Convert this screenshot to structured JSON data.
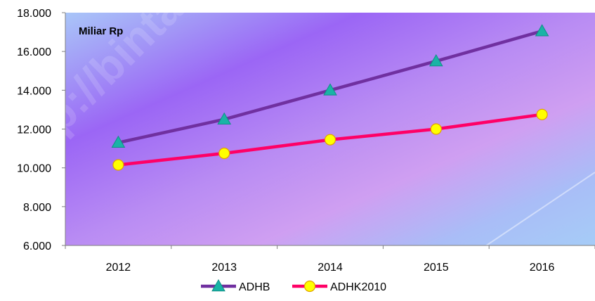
{
  "chart_data": {
    "type": "line",
    "title": "",
    "unit_label": "Miliar Rp",
    "categories": [
      "2012",
      "2013",
      "2014",
      "2015",
      "2016"
    ],
    "ylim": [
      6000,
      18000
    ],
    "y_ticks": [
      6000,
      8000,
      10000,
      12000,
      14000,
      16000,
      18000
    ],
    "y_tick_labels": [
      "6.000",
      "8.000",
      "10.000",
      "12.000",
      "14.000",
      "16.000",
      "18.000"
    ],
    "grid": false,
    "legend_position": "bottom",
    "series": [
      {
        "name": "ADHB",
        "values": [
          11300,
          12500,
          14000,
          15500,
          17050
        ],
        "line_color": "#7030a0",
        "marker": "triangle",
        "marker_color": "#1ab3a6"
      },
      {
        "name": "ADHK2010",
        "values": [
          10150,
          10750,
          11450,
          12000,
          12750
        ],
        "line_color": "#ff0066",
        "marker": "circle",
        "marker_color": "#ffff00"
      }
    ]
  },
  "watermark": "http://bintan",
  "colors": {
    "background_from": "#c9b8f6",
    "background_mid": "#9a62f5",
    "background_to": "#9fc2f5"
  }
}
